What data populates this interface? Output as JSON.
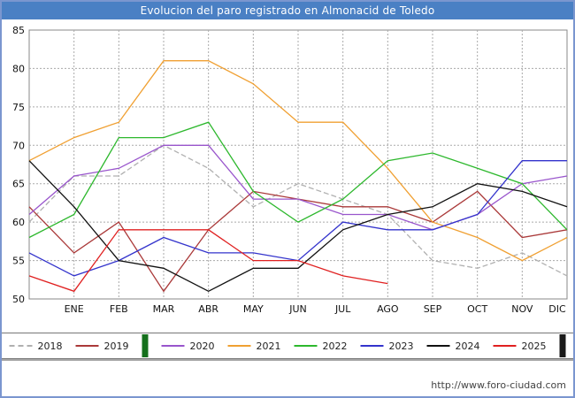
{
  "ui": {
    "title_bar_bg": "#4a80c4",
    "legend_green_stripe": "#15701c",
    "legend_dark_stripe": "#1a1a1a"
  },
  "footer": {
    "url": "http://www.foro-ciudad.com"
  },
  "chart_data": {
    "type": "line",
    "title": "Evolucion del paro registrado en Almonacid de Toledo",
    "categories": [
      "",
      "ENE",
      "FEB",
      "MAR",
      "ABR",
      "MAY",
      "JUN",
      "JUL",
      "AGO",
      "SEP",
      "OCT",
      "NOV",
      "DIC"
    ],
    "ylim": [
      50,
      85
    ],
    "y_tick_step": 5,
    "grid": true,
    "legend_position": "bottom",
    "series": [
      {
        "name": "2018",
        "color": "#b0b0b0",
        "dash": true,
        "values": [
          60,
          66,
          66,
          70,
          67,
          62,
          65,
          63,
          61,
          55,
          54,
          56,
          53
        ]
      },
      {
        "name": "2019",
        "color": "#aa3939",
        "dash": false,
        "values": [
          62,
          56,
          60,
          51,
          59,
          64,
          63,
          62,
          62,
          60,
          64,
          58,
          59
        ]
      },
      {
        "name": "2020",
        "color": "#9955cc",
        "dash": false,
        "values": [
          61,
          66,
          67,
          70,
          70,
          63,
          63,
          61,
          61,
          59,
          61,
          65,
          66
        ]
      },
      {
        "name": "2021",
        "color": "#f0a032",
        "dash": false,
        "values": [
          68,
          71,
          73,
          81,
          81,
          78,
          73,
          73,
          67,
          60,
          58,
          55,
          58
        ]
      },
      {
        "name": "2022",
        "color": "#2db82d",
        "dash": false,
        "values": [
          58,
          61,
          71,
          71,
          73,
          64,
          60,
          63,
          68,
          69,
          67,
          65,
          59
        ]
      },
      {
        "name": "2023",
        "color": "#3333cc",
        "dash": false,
        "values": [
          56,
          53,
          55,
          58,
          56,
          56,
          55,
          60,
          59,
          59,
          61,
          68,
          68
        ]
      },
      {
        "name": "2024",
        "color": "#111111",
        "dash": false,
        "values": [
          68,
          62,
          55,
          54,
          51,
          54,
          54,
          59,
          61,
          62,
          65,
          64,
          62
        ]
      },
      {
        "name": "2025",
        "color": "#e02020",
        "dash": false,
        "values": [
          53,
          51,
          59,
          59,
          59,
          55,
          55,
          53,
          52,
          null,
          null,
          null,
          null
        ]
      }
    ]
  }
}
